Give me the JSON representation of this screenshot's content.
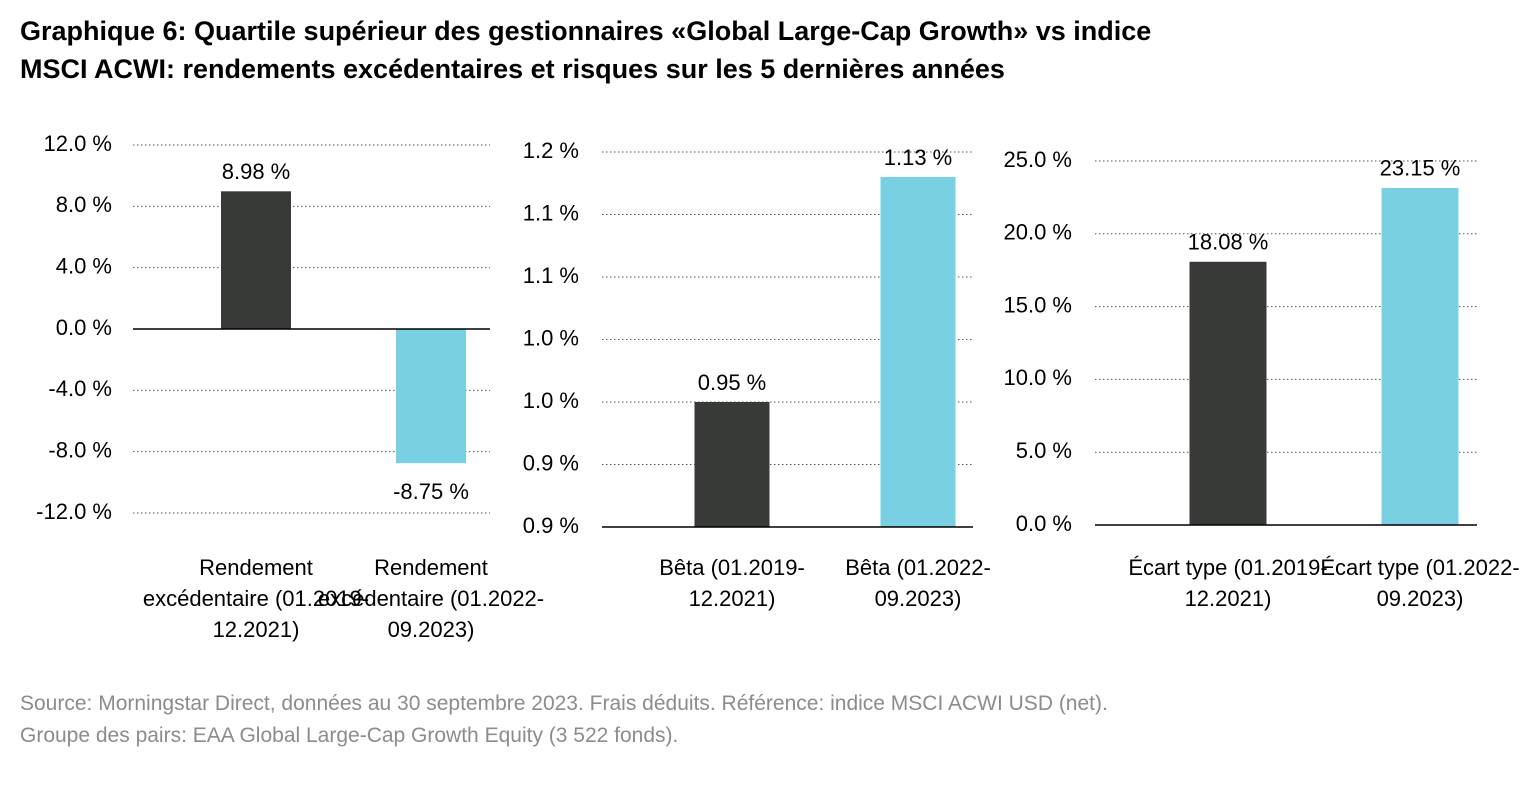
{
  "title_lines": [
    "Graphique 6: Quartile supérieur des gestionnaires «Global Large-Cap Growth» vs indice",
    "MSCI ACWI: rendements excédentaires et risques sur les 5 dernières années"
  ],
  "chart_data": [
    {
      "type": "bar",
      "categories": [
        "Rendement excédentaire (01.2019-12.2021)",
        "Rendement excédentaire (01.2022-09.2023)"
      ],
      "values": [
        8.98,
        -8.75
      ],
      "value_labels": [
        "8.98 %",
        "-8.75 %"
      ],
      "colors": [
        "#383a37",
        "#7ad0e3"
      ],
      "ylim": [
        -12,
        12
      ],
      "grid": true,
      "yticks": [
        {
          "value": -12,
          "label": "-12.0 %"
        },
        {
          "value": -8,
          "label": "-8.0 %"
        },
        {
          "value": -4,
          "label": "-4.0 %"
        },
        {
          "value": 0,
          "label": "0.0 %"
        },
        {
          "value": 4,
          "label": "4.0 %"
        },
        {
          "value": 8,
          "label": "8.0 %"
        },
        {
          "value": 12,
          "label": "12.0 %"
        }
      ]
    },
    {
      "type": "bar",
      "categories": [
        "Bêta (01.2019-12.2021)",
        "Bêta (01.2022-09.2023)"
      ],
      "values": [
        0.95,
        1.13
      ],
      "value_labels": [
        "0.95 %",
        "1.13 %"
      ],
      "colors": [
        "#383a37",
        "#7ad0e3"
      ],
      "ylim": [
        0.85,
        1.15
      ],
      "grid": true,
      "yticks": [
        {
          "value": 0.85,
          "label": "0.9 %"
        },
        {
          "value": 0.9,
          "label": "0.9 %"
        },
        {
          "value": 0.95,
          "label": "1.0 %"
        },
        {
          "value": 1.0,
          "label": "1.0 %"
        },
        {
          "value": 1.05,
          "label": "1.1 %"
        },
        {
          "value": 1.1,
          "label": "1.1 %"
        },
        {
          "value": 1.15,
          "label": "1.2 %"
        }
      ]
    },
    {
      "type": "bar",
      "categories": [
        "Écart type (01.2019-12.2021)",
        "Écart type (01.2022-09.2023)"
      ],
      "values": [
        18.08,
        23.15
      ],
      "value_labels": [
        "18.08 %",
        "23.15 %"
      ],
      "colors": [
        "#383a37",
        "#7ad0e3"
      ],
      "ylim": [
        0,
        25
      ],
      "grid": true,
      "yticks": [
        {
          "value": 0,
          "label": "0.0 %"
        },
        {
          "value": 5,
          "label": "5.0 %"
        },
        {
          "value": 10,
          "label": "10.0 %"
        },
        {
          "value": 15,
          "label": "15.0 %"
        },
        {
          "value": 20,
          "label": "20.0 %"
        },
        {
          "value": 25,
          "label": "25.0 %"
        }
      ]
    }
  ],
  "footnote_lines": [
    "Source: Morningstar Direct, données au 30 septembre 2023. Frais déduits. Référence: indice MSCI ACWI USD (net).",
    "Groupe des pairs: EAA Global Large-Cap Growth Equity (3 522 fonds)."
  ]
}
